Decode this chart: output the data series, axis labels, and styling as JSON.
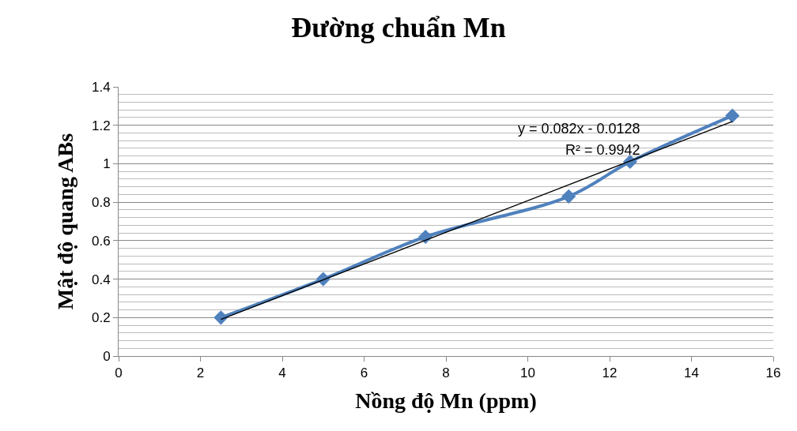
{
  "chart_data": {
    "type": "line",
    "title": "Đường chuẩn Mn",
    "xlabel": "Nồng độ Mn (ppm)",
    "ylabel": "Mật độ quang ABs",
    "x": [
      2.5,
      5,
      7.5,
      11,
      12.5,
      15
    ],
    "series": [
      {
        "color": "#4f81bd",
        "values": [
          0.2,
          0.4,
          0.62,
          0.83,
          1.01,
          1.25
        ],
        "marker": "diamond",
        "line_style": "solid"
      },
      {
        "type": "line",
        "color": "#000000",
        "x": [
          2.5,
          15
        ],
        "values": [
          0.19,
          1.22
        ],
        "marker": "none",
        "line_style": "solid"
      }
    ],
    "annotations": [
      "y = 0.082x - 0.0128",
      "R² = 0.9942"
    ],
    "xlim": [
      0,
      16
    ],
    "xticks": [
      0,
      2,
      4,
      6,
      8,
      10,
      12,
      14,
      16
    ],
    "ylim": [
      0,
      1.4
    ],
    "yticks": [
      0,
      0.2,
      0.4,
      0.6,
      0.8,
      1,
      1.2,
      1.4
    ],
    "grid": "y"
  }
}
